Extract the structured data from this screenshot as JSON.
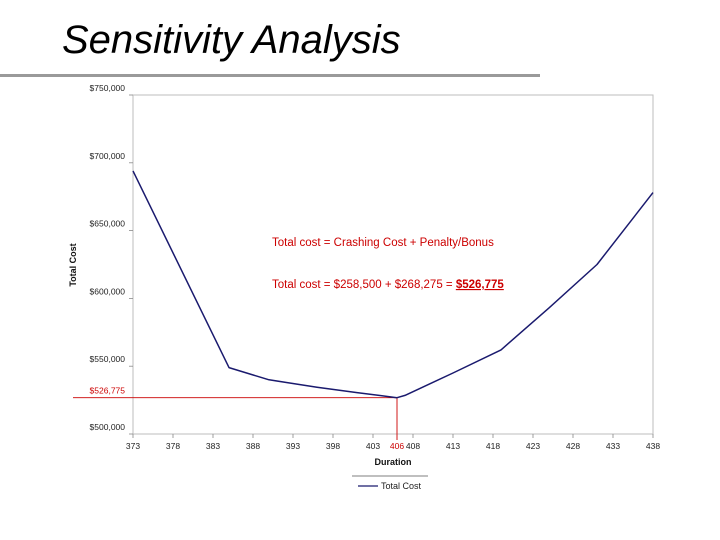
{
  "slide": {
    "title": "Sensitivity Analysis"
  },
  "chart_data": {
    "type": "line",
    "title": "",
    "xlabel": "Duration",
    "ylabel": "Total Cost",
    "xlim": [
      373,
      438
    ],
    "ylim": [
      500000,
      750000
    ],
    "grid": false,
    "legend_position": "bottom",
    "x_tick_labels": [
      "373",
      "378",
      "383",
      "388",
      "393",
      "398",
      "403",
      "408",
      "413",
      "418",
      "423",
      "428",
      "433",
      "438"
    ],
    "y_ticks": [
      {
        "value": 500000,
        "label": "$500,000"
      },
      {
        "value": 550000,
        "label": "$550,000"
      },
      {
        "value": 600000,
        "label": "$600,000"
      },
      {
        "value": 650000,
        "label": "$650,000"
      },
      {
        "value": 700000,
        "label": "$700,000"
      },
      {
        "value": 750000,
        "label": "$750,000"
      }
    ],
    "series": [
      {
        "name": "Total Cost",
        "color": "#1a1a6e",
        "x": [
          373,
          385,
          390,
          396,
          401,
          406,
          407,
          413,
          419,
          425,
          431,
          438
        ],
        "y": [
          694000,
          549000,
          540000,
          534500,
          530500,
          526775,
          528500,
          545000,
          562000,
          593000,
          625000,
          678000
        ]
      }
    ],
    "reference": {
      "x": 406,
      "y": 526775,
      "x_label": "406",
      "y_label": "$526,775",
      "color": "#cc0000"
    },
    "annotations": [
      {
        "text": "Total cost = Crashing Cost + Penalty/Bonus"
      },
      {
        "text": "Total cost = $258,500 + $268,275 = ",
        "highlight": "$526,775"
      }
    ]
  }
}
